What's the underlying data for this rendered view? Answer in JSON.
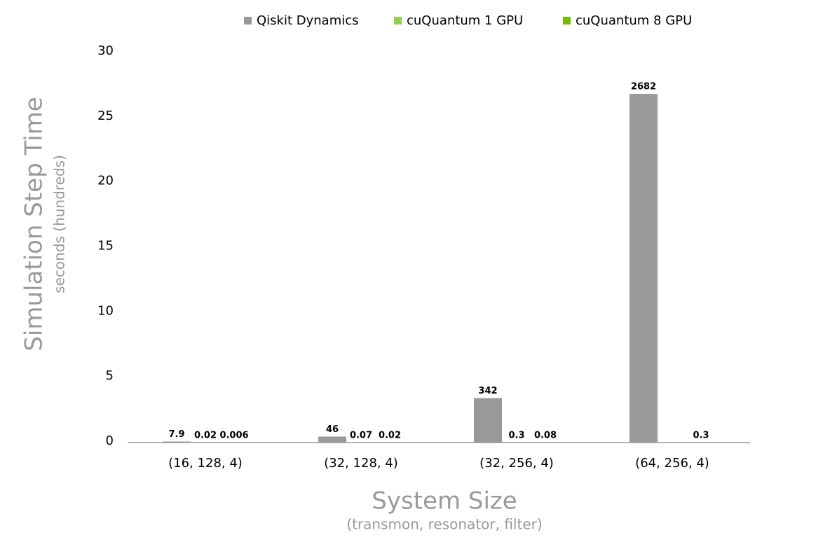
{
  "chart_data": {
    "type": "bar",
    "y_title": "Simulation Step Time",
    "y_subtitle": "seconds (hundreds)",
    "x_title": "System Size",
    "x_subtitle": "(transmon, resonator, filter)",
    "categories": [
      "(16, 128, 4)",
      "(32, 128, 4)",
      "(32, 256, 4)",
      "(64, 256, 4)"
    ],
    "series": [
      {
        "name": "Qiskit Dynamics",
        "color": "#999999",
        "values": [
          0.079,
          0.46,
          3.42,
          26.82
        ],
        "value_labels": [
          "7.9",
          "46",
          "342",
          "2682"
        ]
      },
      {
        "name": "cuQuantum 1 GPU",
        "color": "#92d050",
        "values": [
          0.0002,
          0.0007,
          0.003,
          null
        ],
        "value_labels": [
          "0.02",
          "0.07",
          "0.3",
          null
        ]
      },
      {
        "name": "cuQuantum 8 GPU",
        "color": "#76b900",
        "values": [
          6e-05,
          0.0002,
          0.0008,
          0.003
        ],
        "value_labels": [
          "0.006",
          "0.02",
          "0.08",
          "0.3"
        ]
      }
    ],
    "ylim": [
      0,
      30
    ],
    "yticks": [
      0,
      5,
      10,
      15,
      20,
      25,
      30
    ],
    "grid": false,
    "legend": "top"
  }
}
